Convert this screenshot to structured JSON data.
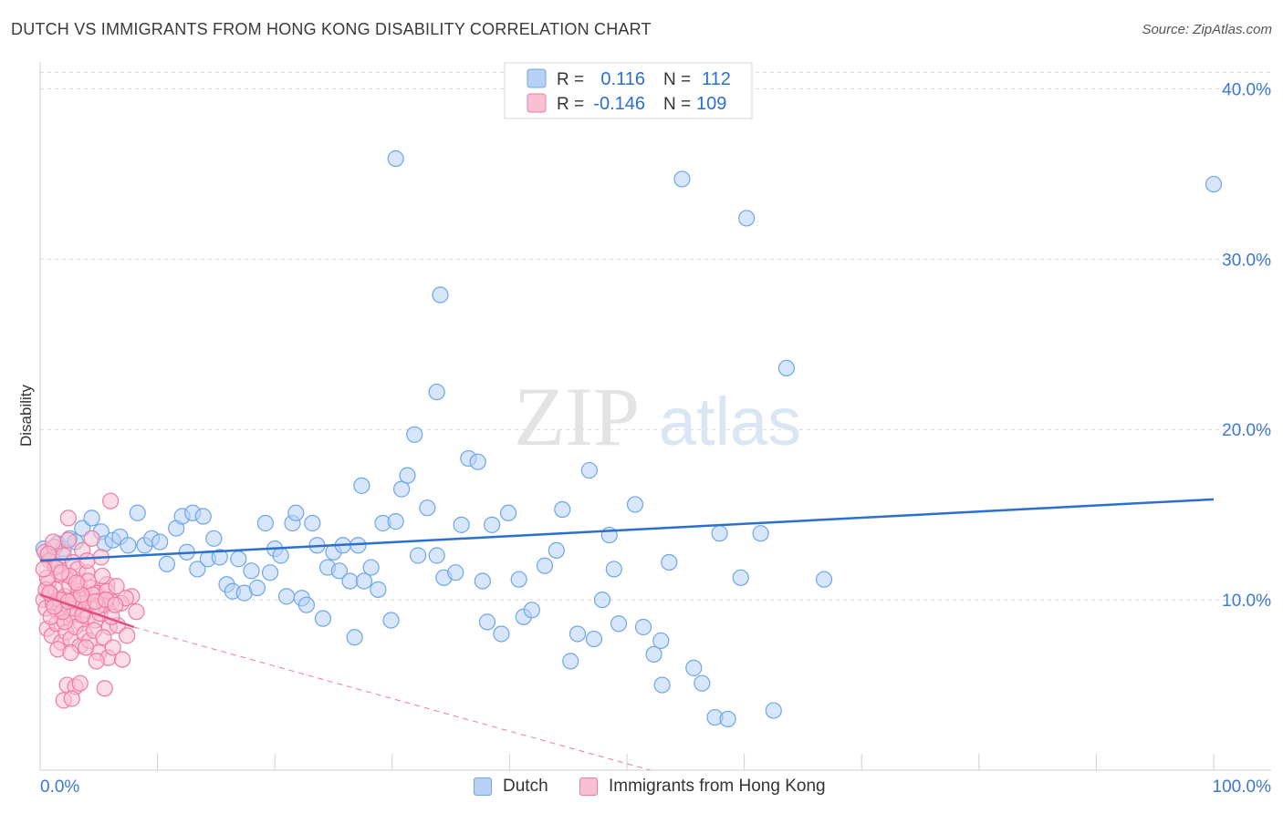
{
  "title": "DUTCH VS IMMIGRANTS FROM HONG KONG DISABILITY CORRELATION CHART",
  "source": "Source: ZipAtlas.com",
  "watermark": {
    "zip": "ZIP",
    "atlas": "atlas"
  },
  "colors": {
    "blue": "#6ea6e8",
    "blue_fill": "#b7d1f5",
    "blue_line": "#2b6fcf",
    "pink": "#f07aa0",
    "pink_fill": "#f9bfd2",
    "pink_line": "#e0507f",
    "axis_text_blue": "#3b78d0",
    "grid": "#d8d8d8"
  },
  "legend": {
    "rows": [
      {
        "r_label": "R =",
        "r_value": "0.116",
        "n_label": "N =",
        "n_value": "112",
        "color": "blue"
      },
      {
        "r_label": "R =",
        "r_value": "-0.146",
        "n_label": "N =",
        "n_value": "109",
        "color": "pink"
      }
    ]
  },
  "bottom_legend": [
    {
      "label": "Dutch",
      "color": "blue"
    },
    {
      "label": "Immigrants from Hong Kong",
      "color": "pink"
    }
  ],
  "chart_data": {
    "type": "scatter",
    "title": "DUTCH VS IMMIGRANTS FROM HONG KONG DISABILITY CORRELATION CHART",
    "xlabel": "",
    "ylabel": "Disability",
    "xlim": [
      0,
      100
    ],
    "ylim": [
      0,
      42
    ],
    "x_ticks": [
      "0.0%",
      "100.0%"
    ],
    "y_ticks": [
      {
        "value": 10,
        "label": "10.0%"
      },
      {
        "value": 20,
        "label": "20.0%"
      },
      {
        "value": 30,
        "label": "30.0%"
      },
      {
        "value": 40,
        "label": "40.0%"
      }
    ],
    "grid": true,
    "series": [
      {
        "name": "Dutch",
        "color": "blue",
        "trend": {
          "x": [
            0,
            100
          ],
          "y": [
            12.3,
            15.9
          ],
          "style": "solid"
        },
        "points": [
          [
            0.3,
            13.0
          ],
          [
            0.6,
            12.6
          ],
          [
            1.0,
            12.4
          ],
          [
            1.5,
            13.3
          ],
          [
            2.0,
            13.0
          ],
          [
            2.5,
            13.6
          ],
          [
            3.0,
            13.4
          ],
          [
            3.6,
            14.2
          ],
          [
            4.4,
            14.8
          ],
          [
            5.2,
            14.0
          ],
          [
            5.5,
            13.3
          ],
          [
            6.2,
            13.5
          ],
          [
            6.8,
            13.7
          ],
          [
            7.5,
            13.2
          ],
          [
            8.3,
            15.1
          ],
          [
            8.9,
            13.2
          ],
          [
            9.5,
            13.6
          ],
          [
            10.2,
            13.4
          ],
          [
            10.8,
            12.1
          ],
          [
            11.6,
            14.2
          ],
          [
            12.1,
            14.9
          ],
          [
            12.5,
            12.8
          ],
          [
            13.0,
            15.1
          ],
          [
            13.4,
            11.8
          ],
          [
            13.9,
            14.9
          ],
          [
            14.3,
            12.4
          ],
          [
            14.8,
            13.6
          ],
          [
            15.3,
            12.5
          ],
          [
            15.9,
            10.9
          ],
          [
            16.4,
            10.5
          ],
          [
            16.9,
            12.4
          ],
          [
            17.4,
            10.4
          ],
          [
            18.0,
            11.7
          ],
          [
            18.5,
            10.7
          ],
          [
            19.2,
            14.5
          ],
          [
            19.6,
            11.6
          ],
          [
            20.0,
            13.0
          ],
          [
            20.5,
            12.6
          ],
          [
            21.0,
            10.2
          ],
          [
            21.5,
            14.5
          ],
          [
            21.8,
            15.1
          ],
          [
            22.3,
            10.1
          ],
          [
            22.7,
            9.7
          ],
          [
            23.2,
            14.5
          ],
          [
            23.6,
            13.2
          ],
          [
            24.1,
            8.9
          ],
          [
            24.5,
            11.9
          ],
          [
            25.0,
            12.8
          ],
          [
            25.5,
            11.7
          ],
          [
            25.8,
            13.2
          ],
          [
            26.4,
            11.1
          ],
          [
            26.8,
            7.8
          ],
          [
            27.1,
            13.2
          ],
          [
            27.6,
            11.1
          ],
          [
            28.2,
            11.9
          ],
          [
            28.8,
            10.6
          ],
          [
            29.2,
            14.5
          ],
          [
            29.9,
            8.8
          ],
          [
            30.3,
            14.6
          ],
          [
            30.8,
            16.5
          ],
          [
            31.3,
            17.3
          ],
          [
            31.9,
            19.7
          ],
          [
            32.2,
            12.6
          ],
          [
            33.0,
            15.4
          ],
          [
            33.8,
            12.6
          ],
          [
            34.4,
            11.3
          ],
          [
            35.4,
            11.6
          ],
          [
            35.9,
            14.4
          ],
          [
            36.5,
            18.3
          ],
          [
            37.3,
            18.1
          ],
          [
            37.7,
            11.1
          ],
          [
            38.1,
            8.7
          ],
          [
            38.5,
            14.4
          ],
          [
            39.3,
            8.0
          ],
          [
            39.9,
            15.1
          ],
          [
            40.8,
            11.2
          ],
          [
            41.2,
            9.0
          ],
          [
            41.9,
            9.4
          ],
          [
            43.0,
            12.0
          ],
          [
            44.0,
            12.9
          ],
          [
            44.5,
            15.3
          ],
          [
            45.2,
            6.4
          ],
          [
            45.8,
            8.0
          ],
          [
            47.2,
            7.7
          ],
          [
            47.9,
            10.0
          ],
          [
            48.5,
            13.8
          ],
          [
            48.9,
            11.8
          ],
          [
            49.3,
            8.6
          ],
          [
            50.7,
            15.6
          ],
          [
            51.4,
            8.4
          ],
          [
            52.3,
            6.8
          ],
          [
            52.9,
            7.6
          ],
          [
            53.0,
            5.0
          ],
          [
            53.6,
            12.2
          ],
          [
            55.7,
            6.0
          ],
          [
            56.4,
            5.1
          ],
          [
            57.5,
            3.1
          ],
          [
            57.9,
            13.9
          ],
          [
            58.6,
            3.0
          ],
          [
            59.7,
            11.3
          ],
          [
            61.4,
            13.9
          ],
          [
            62.5,
            3.5
          ],
          [
            63.6,
            23.6
          ],
          [
            66.8,
            11.2
          ],
          [
            33.8,
            22.2
          ],
          [
            60.2,
            32.4
          ],
          [
            54.7,
            34.7
          ],
          [
            34.1,
            27.9
          ],
          [
            30.3,
            35.9
          ],
          [
            100.0,
            34.4
          ],
          [
            27.4,
            16.7
          ],
          [
            46.8,
            17.6
          ]
        ]
      },
      {
        "name": "Immigrants from Hong Kong",
        "color": "pink",
        "trend": {
          "x": [
            0,
            8.0,
            52.0
          ],
          "y": [
            10.3,
            8.4,
            0
          ],
          "style": "solid-then-dashed"
        },
        "points": [
          [
            0.3,
            10.0
          ],
          [
            0.5,
            9.5
          ],
          [
            0.7,
            11.0
          ],
          [
            0.9,
            10.3
          ],
          [
            1.1,
            9.8
          ],
          [
            1.3,
            10.6
          ],
          [
            1.5,
            9.3
          ],
          [
            1.7,
            11.5
          ],
          [
            1.9,
            8.9
          ],
          [
            2.1,
            10.2
          ],
          [
            2.3,
            9.7
          ],
          [
            2.5,
            10.8
          ],
          [
            2.7,
            9.1
          ],
          [
            2.9,
            11.2
          ],
          [
            3.1,
            9.9
          ],
          [
            3.3,
            10.5
          ],
          [
            3.5,
            8.6
          ],
          [
            3.7,
            9.4
          ],
          [
            3.9,
            10.1
          ],
          [
            4.1,
            9.0
          ],
          [
            4.3,
            10.7
          ],
          [
            4.5,
            9.6
          ],
          [
            4.7,
            8.8
          ],
          [
            4.9,
            10.4
          ],
          [
            5.1,
            9.2
          ],
          [
            5.3,
            10.0
          ],
          [
            5.5,
            9.7
          ],
          [
            5.7,
            10.9
          ],
          [
            5.9,
            8.4
          ],
          [
            6.1,
            9.9
          ],
          [
            0.4,
            12.8
          ],
          [
            0.8,
            12.3
          ],
          [
            1.2,
            13.1
          ],
          [
            1.6,
            12.0
          ],
          [
            2.0,
            12.6
          ],
          [
            2.4,
            13.5
          ],
          [
            2.8,
            12.2
          ],
          [
            3.2,
            11.8
          ],
          [
            3.6,
            12.9
          ],
          [
            4.0,
            11.6
          ],
          [
            0.6,
            8.3
          ],
          [
            1.0,
            7.9
          ],
          [
            1.4,
            8.6
          ],
          [
            1.8,
            7.5
          ],
          [
            2.2,
            8.1
          ],
          [
            2.6,
            7.7
          ],
          [
            3.0,
            8.4
          ],
          [
            3.4,
            7.3
          ],
          [
            3.8,
            8.0
          ],
          [
            4.2,
            7.6
          ],
          [
            4.6,
            8.2
          ],
          [
            5.0,
            6.9
          ],
          [
            5.4,
            7.8
          ],
          [
            5.8,
            6.6
          ],
          [
            6.2,
            7.2
          ],
          [
            6.6,
            8.5
          ],
          [
            7.0,
            6.5
          ],
          [
            7.4,
            7.9
          ],
          [
            7.8,
            10.2
          ],
          [
            8.2,
            9.3
          ],
          [
            0.5,
            10.6
          ],
          [
            0.9,
            9.0
          ],
          [
            1.3,
            11.9
          ],
          [
            1.7,
            10.0
          ],
          [
            2.1,
            8.7
          ],
          [
            2.5,
            11.4
          ],
          [
            2.9,
            9.5
          ],
          [
            3.3,
            10.9
          ],
          [
            3.7,
            9.8
          ],
          [
            4.1,
            11.1
          ],
          [
            4.5,
            10.3
          ],
          [
            4.9,
            9.6
          ],
          [
            5.3,
            11.4
          ],
          [
            5.7,
            10.5
          ],
          [
            6.1,
            9.0
          ],
          [
            6.5,
            10.8
          ],
          [
            6.9,
            9.8
          ],
          [
            7.3,
            10.1
          ],
          [
            4.8,
            6.4
          ],
          [
            5.5,
            4.8
          ],
          [
            2.3,
            5.0
          ],
          [
            3.0,
            4.9
          ],
          [
            2.0,
            4.1
          ],
          [
            2.7,
            4.2
          ],
          [
            3.4,
            5.1
          ],
          [
            6.0,
            15.8
          ],
          [
            2.4,
            14.8
          ],
          [
            4.4,
            13.6
          ],
          [
            1.1,
            13.4
          ],
          [
            0.7,
            12.7
          ],
          [
            1.5,
            7.1
          ],
          [
            2.6,
            6.9
          ],
          [
            3.9,
            7.2
          ],
          [
            0.8,
            10.4
          ],
          [
            1.9,
            9.3
          ],
          [
            2.8,
            10.0
          ],
          [
            3.6,
            9.1
          ],
          [
            4.7,
            9.9
          ],
          [
            5.6,
            10.0
          ],
          [
            6.4,
            9.7
          ],
          [
            1.2,
            9.6
          ],
          [
            2.4,
            9.9
          ],
          [
            3.5,
            10.3
          ],
          [
            0.6,
            11.3
          ],
          [
            1.8,
            11.6
          ],
          [
            3.1,
            11.0
          ],
          [
            4.0,
            12.3
          ],
          [
            5.2,
            12.5
          ],
          [
            0.3,
            11.8
          ]
        ]
      }
    ]
  }
}
